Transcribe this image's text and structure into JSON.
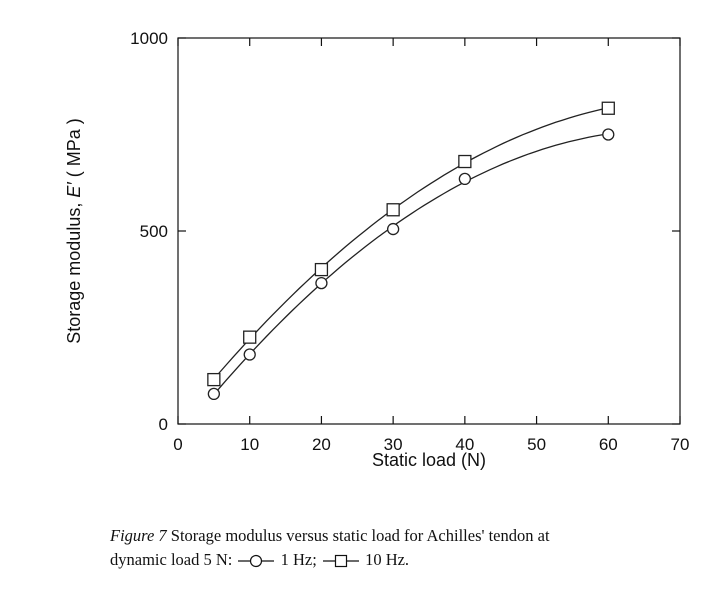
{
  "chart_data": {
    "type": "scatter",
    "xlabel": "Static load (N)",
    "ylabel": "Storage modulus, ",
    "ylabel_symbol": "E′",
    "ylabel_unit": " ( MPa )",
    "xlim": [
      0,
      70
    ],
    "ylim": [
      0,
      1000
    ],
    "xticks": [
      0,
      10,
      20,
      30,
      40,
      50,
      60,
      70
    ],
    "yticks": [
      0,
      500,
      1000
    ],
    "grid": false,
    "series": [
      {
        "name": "1 Hz",
        "marker": "circle",
        "color": "#222222",
        "x": [
          5,
          10,
          20,
          30,
          40,
          60
        ],
        "y": [
          78,
          180,
          365,
          505,
          635,
          750
        ]
      },
      {
        "name": "10 Hz",
        "marker": "square",
        "color": "#222222",
        "x": [
          5,
          10,
          20,
          30,
          40,
          60
        ],
        "y": [
          115,
          225,
          400,
          555,
          680,
          818
        ]
      }
    ]
  },
  "caption": {
    "fig_label": "Figure 7",
    "text_line1": " Storage modulus versus static load for Achilles' tendon at",
    "text_line2_prefix": "dynamic load 5 N: ",
    "legend_1": "1 Hz;",
    "legend_2": "10 Hz."
  }
}
